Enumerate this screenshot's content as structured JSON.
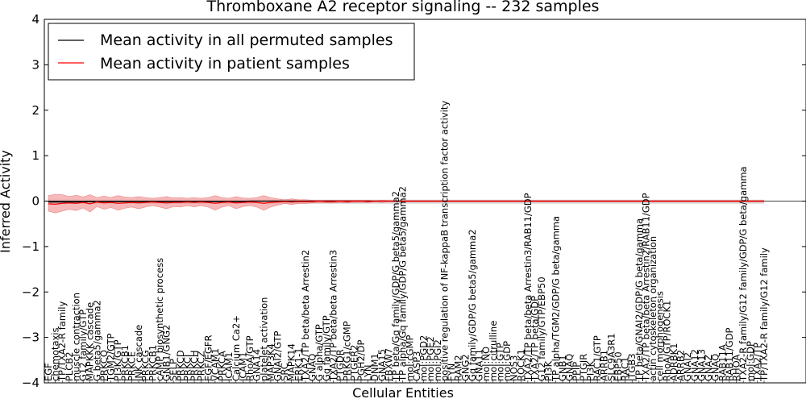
{
  "chart_data": {
    "type": "line",
    "title": "Thromboxane A2 receptor signaling -- 232 samples",
    "xlabel": "Cellular Entities",
    "ylabel": "Inferred Activity",
    "ylim": [
      -4,
      4
    ],
    "yticks": [
      4,
      3,
      2,
      1,
      0,
      -1,
      -2,
      -3,
      -4
    ],
    "ytick_labels": [
      "4",
      "3",
      "2",
      "1",
      "0",
      "−1",
      "−2",
      "−3",
      "−4"
    ],
    "legend_position": "top-left",
    "colors": {
      "permuted": "#000000",
      "patient": "#ff0000",
      "patient_band": "#f08080",
      "permuted_band": "#c8c8c8"
    },
    "categories": [
      "EGF",
      "chemotaxis",
      "TP/TXA2-R family",
      "PLCB2",
      "muscle contraction",
      "G12 family/GTP",
      "MAPKKK cascade",
      "G beta5/gamma2",
      "PRKCQ",
      "TGM2/GTP",
      "PI3K/GTP",
      "PRKCB1",
      "PRKCE",
      "JNK cascade",
      "PRKCG",
      "PRKCB1",
      "cAMP biosynthetic process",
      "GNB1/GNG2",
      "SELP",
      "PRKCD",
      "PRKCI",
      "PRKCH",
      "PRKCZ",
      "EGF/EGFR",
      "VCAM1",
      "PRKCA",
      "ICAM1",
      "Calcium Ca2+",
      "ICAM1",
      "RhoA/GTP",
      "GNA14",
      "platelet activation",
      "MAP3K4",
      "GNAI2/GTP",
      "SRC",
      "MAPK14",
      "ERK1-1",
      "TXA2/TP beta/beta Arrestin2",
      "GNAQ",
      "G alpha/GTP",
      "Gq family/GTP",
      "TXA2/TP beta/beta Arrestin3",
      "PTGDR",
      "PRKG1/cGMP",
      "PTGER2",
      "PGH2/DP",
      "LYN",
      "DNM1",
      "GNA15",
      "FBXW7",
      "TP beta/Gq family/GDP/G beta5/gamma2",
      "TP alpha/Gq family/GDP/G beta5/gamma2",
      "mol:cGMP",
      "CASP3",
      "mol:PGD2",
      "mol:PGE2",
      "mol:PGI2",
      "positive regulation of NF-kappaB transcription factor activity",
      "FYN",
      "RAM2",
      "GNG2",
      "Gq family/GDP/G beta5/gamma2",
      "GNA11",
      "mol:NO",
      "mol:citrulline",
      "mol:GTP",
      "mol:GDP",
      "NOS3",
      "ROCK1",
      "TXA2/TP beta/beta Arrestin3/RAB11/GDP",
      "TXA2/TP beta/GDP",
      "G12 family/GTP/EBP50",
      "PI3K",
      "TP alpha/TGM2/GDP/G beta/gamma",
      "GNB1",
      "GNAQ",
      "PPIP",
      "PTGIR",
      "PI3K",
      "RAC1/GTP",
      "ARRB1",
      "SLC9A3R1",
      "EBP50",
      "RAC1",
      "ITGB3",
      "TP beta/GNAI2/GDP/G beta/gamma",
      "TXA2/TP beta/beta Arrestin2/RAB11/GDP",
      "actin cytoskeleton organization",
      "cell morphogenesis",
      "RhoA/GTP/ROCK1",
      "ADRBK1",
      "ARRB2",
      "GNAI2",
      "GNA12",
      "GNA13",
      "GNAZ",
      "GNAQ",
      "RAB11A",
      "RAB11/GDP",
      "RHOA",
      "TXA2-R family/G12 family/GDP/G beta/gamma",
      "mol:GDP",
      "TXA2/TP",
      "TP/TXA2-R family/G12 family"
    ],
    "series": [
      {
        "name": "Mean activity in all permuted samples",
        "values": [
          -0.02,
          -0.02,
          -0.02,
          -0.02,
          -0.02,
          -0.02,
          -0.01,
          -0.02,
          -0.01,
          -0.01,
          -0.01,
          -0.01,
          -0.01,
          -0.01,
          -0.01,
          -0.01,
          -0.01,
          -0.01,
          -0.01,
          -0.01,
          -0.01,
          -0.01,
          -0.01,
          -0.01,
          -0.01,
          -0.01,
          -0.01,
          -0.01,
          -0.01,
          0.0,
          0.0,
          0.0,
          0.0,
          0.0,
          0.0,
          0.0,
          0.0,
          0.0,
          0.0,
          0.0,
          0.0,
          0.0,
          0.0,
          0.0,
          0.0,
          0.0,
          0.0,
          0.0,
          0.0,
          0.0,
          0.0,
          0.0,
          0.0,
          0.0,
          0.0,
          0.0,
          0.0,
          0.0,
          0.0,
          0.0,
          0.0,
          0.0,
          0.0,
          0.0,
          0.0,
          0.0,
          0.0,
          0.0,
          0.0,
          0.0,
          0.0,
          0.0,
          0.0,
          0.0,
          0.0,
          0.0,
          0.0,
          0.0,
          0.0,
          0.0,
          0.0,
          0.0,
          0.0,
          0.0,
          0.0,
          0.0,
          0.0,
          0.0,
          0.0,
          0.0,
          0.0,
          0.0,
          0.0,
          0.0,
          0.0,
          0.0,
          0.0,
          0.0,
          0.0,
          0.0,
          0.0,
          0.0,
          0.0,
          0.0
        ]
      },
      {
        "name": "Mean activity in patient samples",
        "values": [
          -0.06,
          -0.07,
          -0.05,
          -0.04,
          -0.05,
          -0.03,
          -0.06,
          -0.02,
          -0.04,
          -0.03,
          -0.05,
          -0.04,
          -0.03,
          -0.04,
          -0.03,
          -0.02,
          -0.03,
          -0.04,
          -0.03,
          -0.03,
          -0.02,
          -0.03,
          -0.02,
          -0.03,
          -0.05,
          -0.03,
          -0.02,
          -0.04,
          -0.03,
          -0.02,
          -0.03,
          -0.05,
          -0.03,
          -0.02,
          -0.01,
          -0.02,
          -0.01,
          -0.01,
          -0.01,
          0.0,
          -0.01,
          -0.01,
          0.0,
          -0.01,
          0.0,
          0.0,
          -0.01,
          0.0,
          0.0,
          0.0,
          0.0,
          0.0,
          0.0,
          0.0,
          0.0,
          0.0,
          0.0,
          0.0,
          0.0,
          0.0,
          0.0,
          0.0,
          0.0,
          0.0,
          0.0,
          0.0,
          0.0,
          0.0,
          0.0,
          0.0,
          0.0,
          0.0,
          0.0,
          0.0,
          0.0,
          0.0,
          0.0,
          0.0,
          0.0,
          0.0,
          0.0,
          0.0,
          0.0,
          0.0,
          0.0,
          0.0,
          0.0,
          0.0,
          0.0,
          0.0,
          0.0,
          0.0,
          0.0,
          0.0,
          0.0,
          0.0,
          0.0,
          0.0,
          0.0,
          0.0,
          0.0,
          0.0,
          0.0,
          0.0
        ]
      }
    ],
    "bands": [
      {
        "name": "patient samples spread",
        "upper": [
          0.12,
          0.15,
          0.14,
          0.1,
          0.13,
          0.09,
          0.14,
          0.08,
          0.11,
          0.08,
          0.12,
          0.09,
          0.08,
          0.1,
          0.08,
          0.06,
          0.08,
          0.1,
          0.07,
          0.08,
          0.06,
          0.08,
          0.06,
          0.08,
          0.12,
          0.08,
          0.06,
          0.1,
          0.07,
          0.06,
          0.08,
          0.12,
          0.08,
          0.05,
          0.03,
          0.05,
          0.03,
          0.03,
          0.02,
          0.02,
          0.02,
          0.02,
          0.02,
          0.02,
          0.02,
          0.02,
          0.02,
          0.01,
          0.02,
          0.01,
          0.01,
          0.01,
          0.01,
          0.01,
          0.01,
          0.01,
          0.01,
          0.01,
          0.01,
          0.01,
          0.01,
          0.01,
          0.01,
          0.01,
          0.01,
          0.01,
          0.01,
          0.01,
          0.01,
          0.01,
          0.01,
          0.01,
          0.01,
          0.01,
          0.01,
          0.01,
          0.01,
          0.01,
          0.01,
          0.01,
          0.01,
          0.01,
          0.01,
          0.01,
          0.01,
          0.01,
          0.01,
          0.01,
          0.01,
          0.01,
          0.01,
          0.01,
          0.01,
          0.01,
          0.01,
          0.01,
          0.01,
          0.01,
          0.01,
          0.01,
          0.01,
          0.01,
          0.01,
          0.01
        ],
        "lower": [
          -0.22,
          -0.26,
          -0.22,
          -0.18,
          -0.21,
          -0.15,
          -0.24,
          -0.12,
          -0.18,
          -0.14,
          -0.2,
          -0.16,
          -0.13,
          -0.17,
          -0.13,
          -0.1,
          -0.13,
          -0.17,
          -0.12,
          -0.13,
          -0.1,
          -0.13,
          -0.1,
          -0.13,
          -0.2,
          -0.13,
          -0.1,
          -0.17,
          -0.12,
          -0.1,
          -0.13,
          -0.2,
          -0.13,
          -0.09,
          -0.05,
          -0.08,
          -0.05,
          -0.05,
          -0.04,
          -0.03,
          -0.04,
          -0.04,
          -0.03,
          -0.04,
          -0.03,
          -0.03,
          -0.03,
          -0.02,
          -0.03,
          -0.02,
          -0.02,
          -0.02,
          -0.02,
          -0.02,
          -0.02,
          -0.02,
          -0.02,
          -0.02,
          -0.02,
          -0.02,
          -0.02,
          -0.02,
          -0.02,
          -0.02,
          -0.02,
          -0.02,
          -0.02,
          -0.02,
          -0.02,
          -0.02,
          -0.02,
          -0.02,
          -0.02,
          -0.02,
          -0.02,
          -0.02,
          -0.02,
          -0.02,
          -0.02,
          -0.02,
          -0.02,
          -0.02,
          -0.02,
          -0.02,
          -0.02,
          -0.02,
          -0.02,
          -0.02,
          -0.02,
          -0.02,
          -0.02,
          -0.02,
          -0.02,
          -0.02,
          -0.02,
          -0.02,
          -0.02,
          -0.02,
          -0.02,
          -0.02,
          -0.02,
          -0.02,
          -0.02,
          -0.02
        ]
      },
      {
        "name": "permuted samples spread",
        "upper": [
          0.03,
          0.03,
          0.03,
          0.03,
          0.03,
          0.03,
          0.03,
          0.03,
          0.03,
          0.03,
          0.03,
          0.03,
          0.03,
          0.03,
          0.03,
          0.03,
          0.03,
          0.03,
          0.03,
          0.03,
          0.03,
          0.03,
          0.03,
          0.03,
          0.03,
          0.03,
          0.03,
          0.03,
          0.03,
          0.03,
          0.03,
          0.03,
          0.03,
          0.03,
          0.03,
          0.03,
          0.03,
          0.03,
          0.03,
          0.03,
          0.03,
          0.03,
          0.03,
          0.03,
          0.03,
          0.03,
          0.03,
          0.03,
          0.03,
          0.03,
          0.03,
          0.03,
          0.03,
          0.03,
          0.03,
          0.03,
          0.03,
          0.03,
          0.03,
          0.03,
          0.03,
          0.03,
          0.03,
          0.03,
          0.03,
          0.03,
          0.03,
          0.03,
          0.03,
          0.03,
          0.03,
          0.03,
          0.03,
          0.03,
          0.03,
          0.03,
          0.03,
          0.03,
          0.03,
          0.03,
          0.03,
          0.03,
          0.03,
          0.03,
          0.03,
          0.03,
          0.03,
          0.03,
          0.03,
          0.03,
          0.03,
          0.03,
          0.03,
          0.03,
          0.03,
          0.03,
          0.03,
          0.03,
          0.03,
          0.03,
          0.03,
          0.03,
          0.03,
          0.03
        ],
        "lower": [
          -0.06,
          -0.06,
          -0.06,
          -0.06,
          -0.06,
          -0.06,
          -0.06,
          -0.06,
          -0.06,
          -0.06,
          -0.06,
          -0.06,
          -0.06,
          -0.06,
          -0.06,
          -0.06,
          -0.06,
          -0.06,
          -0.06,
          -0.06,
          -0.06,
          -0.06,
          -0.06,
          -0.06,
          -0.06,
          -0.06,
          -0.06,
          -0.06,
          -0.06,
          -0.06,
          -0.06,
          -0.06,
          -0.06,
          -0.06,
          -0.06,
          -0.06,
          -0.06,
          -0.06,
          -0.06,
          -0.06,
          -0.06,
          -0.06,
          -0.06,
          -0.06,
          -0.06,
          -0.06,
          -0.06,
          -0.06,
          -0.06,
          -0.06,
          -0.06,
          -0.06,
          -0.06,
          -0.06,
          -0.06,
          -0.06,
          -0.06,
          -0.06,
          -0.06,
          -0.06,
          -0.06,
          -0.06,
          -0.06,
          -0.06,
          -0.06,
          -0.06,
          -0.06,
          -0.06,
          -0.06,
          -0.06,
          -0.06,
          -0.06,
          -0.06,
          -0.06,
          -0.06,
          -0.06,
          -0.06,
          -0.06,
          -0.06,
          -0.06,
          -0.06,
          -0.06,
          -0.06,
          -0.06,
          -0.06,
          -0.06,
          -0.06,
          -0.06,
          -0.06,
          -0.06,
          -0.06,
          -0.06,
          -0.06,
          -0.06,
          -0.06,
          -0.06,
          -0.06,
          -0.06,
          -0.06,
          -0.06,
          -0.06,
          -0.06,
          -0.06,
          -0.06
        ]
      }
    ]
  }
}
